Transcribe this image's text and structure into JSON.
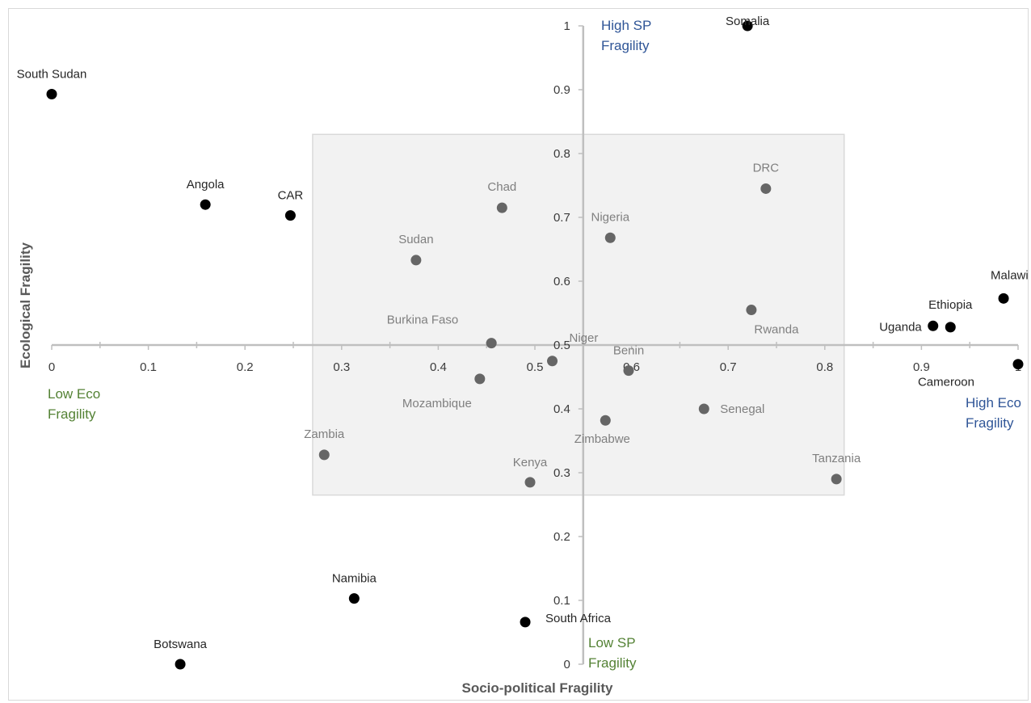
{
  "chart_data": {
    "type": "scatter",
    "xlabel": "Socio-political Fragility",
    "ylabel": "Ecological Fragility",
    "xlim": [
      0,
      1
    ],
    "ylim": [
      0,
      1
    ],
    "x_ticks": [
      "0",
      "0.1",
      "0.2",
      "0.3",
      "0.4",
      "0.5",
      "0.6",
      "0.7",
      "0.8",
      "0.9",
      "1"
    ],
    "y_ticks": [
      "0",
      "0.1",
      "0.2",
      "0.3",
      "0.4",
      "0.5",
      "0.6",
      "0.7",
      "0.8",
      "0.9",
      "1"
    ],
    "x_axis_crosses_y_at": 0.5,
    "y_axis_crosses_x_at": 0.55,
    "grid": false,
    "highlight_region": {
      "x_range": [
        0.27,
        0.82
      ],
      "y_range": [
        0.265,
        0.83
      ],
      "color": "#f2f2f2"
    },
    "marker_colors": {
      "outside_region": "#000000",
      "inside_region": "#666666"
    },
    "label_colors": {
      "outside_region": "#262626",
      "inside_region": "#7f7f7f"
    },
    "points": [
      {
        "name": "South Sudan",
        "x": 0.0,
        "y": 0.893
      },
      {
        "name": "Angola",
        "x": 0.159,
        "y": 0.72
      },
      {
        "name": "CAR",
        "x": 0.247,
        "y": 0.703
      },
      {
        "name": "Somalia",
        "x": 0.72,
        "y": 1.0
      },
      {
        "name": "Malawi",
        "x": 0.985,
        "y": 0.573
      },
      {
        "name": "Ethiopia",
        "x": 0.93,
        "y": 0.528
      },
      {
        "name": "Uganda",
        "x": 0.912,
        "y": 0.53
      },
      {
        "name": "Cameroon",
        "x": 1.0,
        "y": 0.47
      },
      {
        "name": "Namibia",
        "x": 0.313,
        "y": 0.103
      },
      {
        "name": "South Africa",
        "x": 0.49,
        "y": 0.066
      },
      {
        "name": "Botswana",
        "x": 0.133,
        "y": 0.0
      },
      {
        "name": "DRC",
        "x": 0.739,
        "y": 0.745
      },
      {
        "name": "Chad",
        "x": 0.466,
        "y": 0.715
      },
      {
        "name": "Nigeria",
        "x": 0.578,
        "y": 0.668
      },
      {
        "name": "Sudan",
        "x": 0.377,
        "y": 0.633
      },
      {
        "name": "Rwanda",
        "x": 0.724,
        "y": 0.555
      },
      {
        "name": "Burkina Faso",
        "x": 0.455,
        "y": 0.503
      },
      {
        "name": "Niger",
        "x": 0.518,
        "y": 0.475
      },
      {
        "name": "Benin",
        "x": 0.597,
        "y": 0.46
      },
      {
        "name": "Mozambique",
        "x": 0.443,
        "y": 0.447
      },
      {
        "name": "Senegal",
        "x": 0.675,
        "y": 0.4
      },
      {
        "name": "Zimbabwe",
        "x": 0.573,
        "y": 0.382
      },
      {
        "name": "Zambia",
        "x": 0.282,
        "y": 0.328
      },
      {
        "name": "Kenya",
        "x": 0.495,
        "y": 0.285
      },
      {
        "name": "Tanzania",
        "x": 0.812,
        "y": 0.29
      }
    ],
    "annotations": {
      "high_sp": [
        "High SP",
        "Fragility"
      ],
      "low_sp": [
        "Low SP",
        "Fragility"
      ],
      "low_eco": [
        "Low Eco",
        "Fragility"
      ],
      "high_eco": [
        "High Eco",
        "Fragility"
      ],
      "colors": {
        "high": "#2f5597",
        "low": "#548235"
      }
    }
  }
}
